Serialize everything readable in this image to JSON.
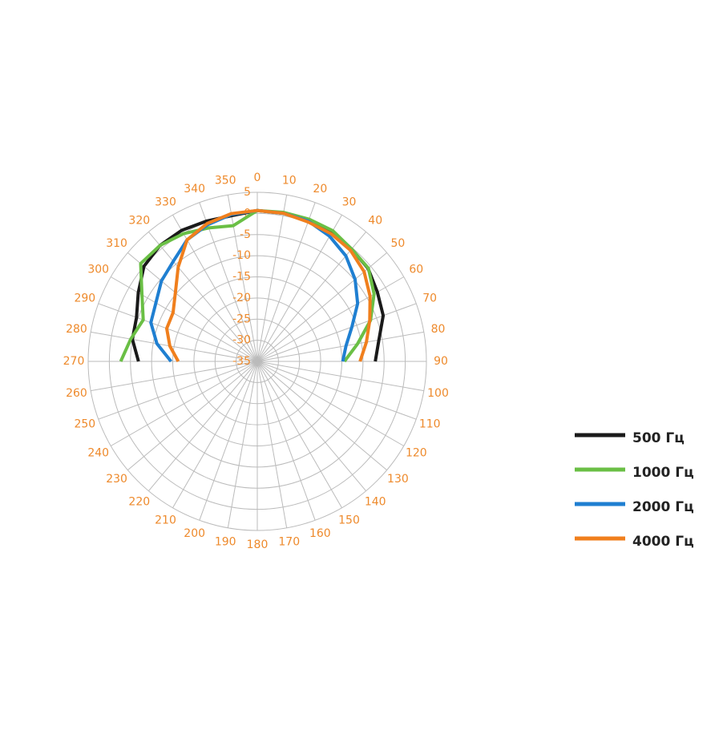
{
  "chart_data": {
    "type": "polar",
    "theta": [
      270,
      280,
      290,
      300,
      310,
      320,
      330,
      340,
      350,
      0,
      10,
      20,
      30,
      40,
      50,
      60,
      70,
      80,
      90
    ],
    "thetaticks": [
      0,
      10,
      20,
      30,
      40,
      50,
      60,
      70,
      80,
      90,
      100,
      110,
      120,
      130,
      140,
      150,
      160,
      170,
      180,
      190,
      200,
      210,
      220,
      230,
      240,
      250,
      260,
      270,
      280,
      290,
      300,
      310,
      320,
      330,
      340,
      350
    ],
    "rlim": [
      -35,
      5
    ],
    "rticks": [
      -35,
      -30,
      -25,
      -20,
      -15,
      -10,
      -5,
      0,
      5
    ],
    "grid": true,
    "legend": "right",
    "series": [
      {
        "name": "500 Гц",
        "color": "#1a1a1a",
        "values": [
          -6.9,
          -5,
          -4.6,
          -2.5,
          0,
          0.8,
          0.8,
          0.3,
          0,
          0.7,
          0.6,
          0.5,
          0.5,
          -0.3,
          -0.8,
          -2.2,
          -3.3,
          -5.8,
          -7.1
        ]
      },
      {
        "name": "1000 Гц",
        "color": "#6abf45",
        "values": [
          -2.7,
          -4.6,
          -6.3,
          -3.5,
          1,
          0.8,
          -0.1,
          -1.4,
          -2.4,
          0.7,
          0.8,
          0.8,
          0.7,
          -0.3,
          -0.7,
          -3.1,
          -6.5,
          -10.9,
          -14.4
        ]
      },
      {
        "name": "2000 Гц",
        "color": "#1f7fd1",
        "values": [
          -14.6,
          -10.9,
          -8.2,
          -7.3,
          -5.4,
          -4.1,
          -1.8,
          -0.6,
          0.3,
          0.7,
          0.6,
          0.3,
          -0.8,
          -2.4,
          -4.8,
          -7.6,
          -11.2,
          -13.7,
          -14.8
        ]
      },
      {
        "name": "4000 Гц",
        "color": "#f07f1d",
        "values": [
          -16.3,
          -14,
          -12.2,
          -12,
          -9.7,
          -5.9,
          -1.8,
          -0.3,
          0.5,
          0.7,
          0.6,
          0.1,
          -0.1,
          -0.7,
          -2,
          -4.2,
          -6.7,
          -8.8,
          -10.7
        ]
      }
    ]
  }
}
